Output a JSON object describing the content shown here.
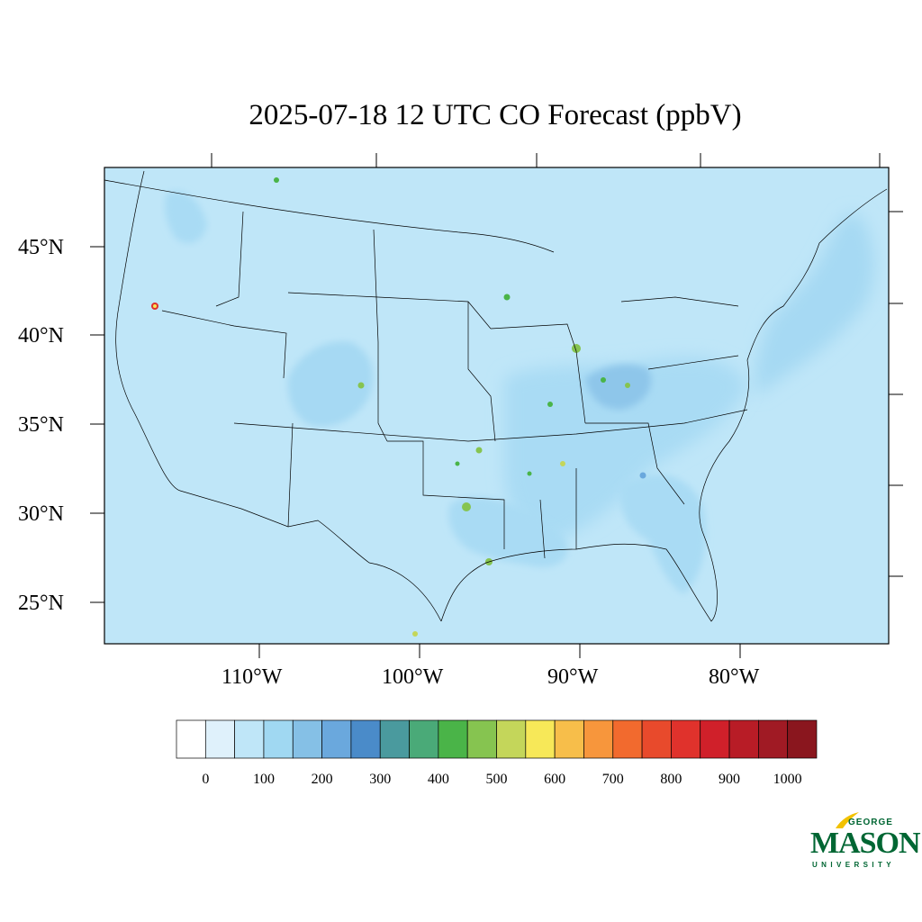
{
  "title": "2025-07-18 12 UTC CO Forecast (ppbV)",
  "map": {
    "background_color": "#bfe6f8",
    "coast_color": "#000000",
    "lat_labels": [
      "45°N",
      "40°N",
      "35°N",
      "30°N",
      "25°N"
    ],
    "lon_labels": [
      "110°W",
      "100°W",
      "90°W",
      "80°W"
    ]
  },
  "colorbar": {
    "colors": [
      "#ffffff",
      "#dff1fb",
      "#bfe6f8",
      "#a0d8f2",
      "#85c0e6",
      "#6aa8dd",
      "#4a8bc9",
      "#4a9a9e",
      "#4aaa78",
      "#4ab448",
      "#86c450",
      "#c4d65a",
      "#f7e858",
      "#f7be4a",
      "#f7963c",
      "#f26a2e",
      "#e84a2c",
      "#e0322c",
      "#d0202a",
      "#b81c26",
      "#a01a24",
      "#8a161e"
    ],
    "labels": [
      "0",
      "100",
      "200",
      "300",
      "400",
      "500",
      "600",
      "700",
      "800",
      "900",
      "1000"
    ]
  },
  "logo": {
    "line1": "GEORGE",
    "line2": "MASON",
    "line3": "UNIVERSITY"
  }
}
